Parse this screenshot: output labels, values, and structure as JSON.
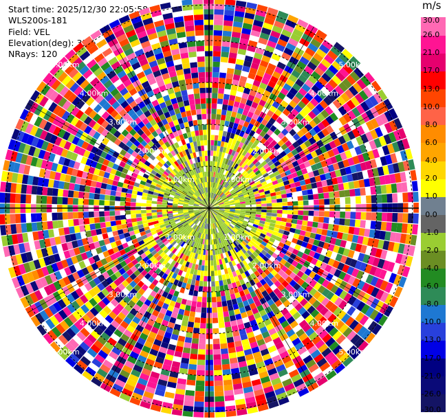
{
  "chart_data": {
    "type": "ppi-radar",
    "info": {
      "start_time": "Start time: 2025/12/30 22:05:58",
      "instrument": "WLS200s-181",
      "field": "Field: VEL",
      "elevation": "Elevation(deg): 35.00",
      "nrays": "NRays: 120"
    },
    "n_rays": 120,
    "max_range_km": 5.0,
    "range_rings": [
      {
        "label": "1.00km",
        "range": 1.0
      },
      {
        "label": "2.00km",
        "range": 2.0
      },
      {
        "label": "3.00km",
        "range": 3.0
      },
      {
        "label": "4.00km",
        "range": 4.0
      },
      {
        "label": "5.00km",
        "range": 5.0
      }
    ],
    "colorbar": {
      "unit": "m/s",
      "boundaries": [
        "-30.0",
        "-26.0",
        "-21.0",
        "-17.0",
        "-13.0",
        "-10.0",
        "-8.0",
        "-6.0",
        "-4.0",
        "-2.0",
        "-1.0",
        "0.0",
        "1.0",
        "2.0",
        "4.0",
        "6.0",
        "8.0",
        "10.0",
        "13.0",
        "17.0",
        "21.0",
        "26.0",
        "30.0"
      ],
      "colors": [
        "#141464",
        "#0a0a78",
        "#000082",
        "#0000e6",
        "#2840dc",
        "#1e78d2",
        "#2e8b57",
        "#228b22",
        "#6b8e23",
        "#9acd32",
        "#646464",
        "#708090",
        "#ffff00",
        "#ffd700",
        "#ffa500",
        "#ff8c00",
        "#ff6347",
        "#ff4500",
        "#ff0000",
        "#e6006e",
        "#ff1493",
        "#ff69b4"
      ]
    }
  }
}
